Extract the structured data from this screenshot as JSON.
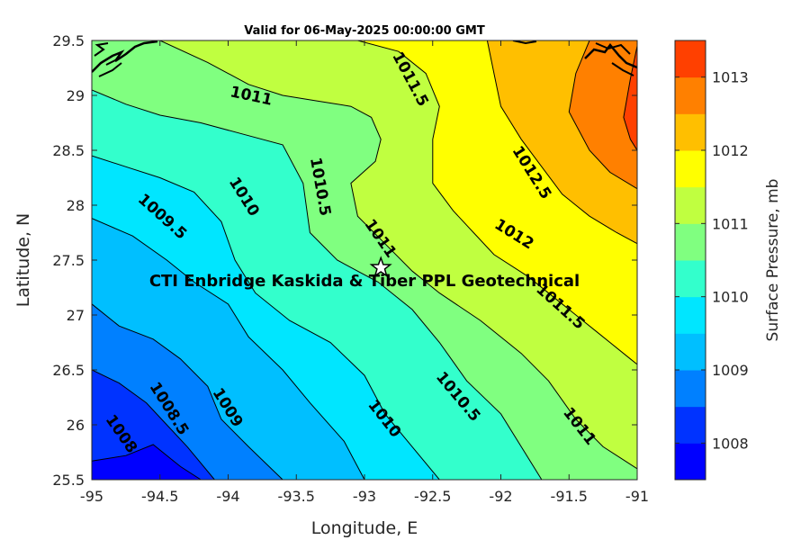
{
  "chart_data": {
    "type": "contour",
    "title": "Valid for 06-May-2025 00:00:00 GMT",
    "xlabel": "Longitude, E",
    "ylabel": "Latitude, N",
    "xlim": [
      -95,
      -91
    ],
    "ylim": [
      25.5,
      29.5
    ],
    "xticks": [
      -95,
      -94.5,
      -94,
      -93.5,
      -93,
      -92.5,
      -92,
      -91.5,
      -91
    ],
    "yticks": [
      25.5,
      26,
      26.5,
      27,
      27.5,
      28,
      28.5,
      29,
      29.5
    ],
    "colorbar": {
      "label": "Surface Pressure, mb",
      "range": [
        1007.5,
        1013.5
      ],
      "ticks": [
        1008,
        1009,
        1010,
        1011,
        1012,
        1013
      ],
      "levels": [
        1007.5,
        1008,
        1008.5,
        1009,
        1009.5,
        1010,
        1010.5,
        1011,
        1011.5,
        1012,
        1012.5,
        1013,
        1013.5
      ],
      "colors": [
        "#0000ff",
        "#0033ff",
        "#0080ff",
        "#00bfff",
        "#00e6ff",
        "#33ffcc",
        "#80ff80",
        "#c0ff40",
        "#ffff00",
        "#ffbf00",
        "#ff8000",
        "#ff4000",
        "#ff0000"
      ]
    },
    "contours": [
      {
        "level": 1008,
        "points": [
          [
            -95,
            25.67
          ],
          [
            -94.75,
            25.72
          ],
          [
            -94.55,
            25.82
          ],
          [
            -94.35,
            25.62
          ],
          [
            -94.2,
            25.5
          ]
        ]
      },
      {
        "level": 1008.5,
        "points": [
          [
            -95,
            26.5
          ],
          [
            -94.8,
            26.38
          ],
          [
            -94.6,
            26.2
          ],
          [
            -94.45,
            26.0
          ],
          [
            -94.3,
            25.8
          ],
          [
            -94.1,
            25.5
          ]
        ]
      },
      {
        "level": 1009,
        "points": [
          [
            -95,
            27.1
          ],
          [
            -94.8,
            26.9
          ],
          [
            -94.55,
            26.78
          ],
          [
            -94.35,
            26.6
          ],
          [
            -94.15,
            26.35
          ],
          [
            -94.05,
            26.05
          ],
          [
            -93.85,
            25.8
          ],
          [
            -93.6,
            25.5
          ]
        ]
      },
      {
        "level": 1009.5,
        "points": [
          [
            -95,
            27.88
          ],
          [
            -94.7,
            27.72
          ],
          [
            -94.45,
            27.5
          ],
          [
            -94.25,
            27.3
          ],
          [
            -94.0,
            27.1
          ],
          [
            -93.85,
            26.8
          ],
          [
            -93.6,
            26.5
          ],
          [
            -93.4,
            26.2
          ],
          [
            -93.15,
            25.85
          ],
          [
            -93.0,
            25.5
          ]
        ]
      },
      {
        "level": 1010,
        "points": [
          [
            -95,
            28.45
          ],
          [
            -94.75,
            28.35
          ],
          [
            -94.5,
            28.25
          ],
          [
            -94.25,
            28.12
          ],
          [
            -94.05,
            27.85
          ],
          [
            -93.95,
            27.5
          ],
          [
            -93.8,
            27.2
          ],
          [
            -93.55,
            26.95
          ],
          [
            -93.25,
            26.75
          ],
          [
            -93.0,
            26.45
          ],
          [
            -92.85,
            26.1
          ],
          [
            -92.65,
            25.8
          ],
          [
            -92.45,
            25.5
          ]
        ]
      },
      {
        "level": 1010.5,
        "points": [
          [
            -95,
            29.05
          ],
          [
            -94.75,
            28.92
          ],
          [
            -94.5,
            28.82
          ],
          [
            -94.2,
            28.75
          ],
          [
            -93.9,
            28.65
          ],
          [
            -93.6,
            28.55
          ],
          [
            -93.45,
            28.2
          ],
          [
            -93.4,
            27.75
          ],
          [
            -93.2,
            27.5
          ],
          [
            -92.9,
            27.3
          ],
          [
            -92.65,
            27.05
          ],
          [
            -92.45,
            26.75
          ],
          [
            -92.25,
            26.4
          ],
          [
            -92.0,
            26.1
          ],
          [
            -91.85,
            25.8
          ],
          [
            -91.7,
            25.5
          ]
        ]
      },
      {
        "level": 1011,
        "points": [
          [
            -94.5,
            29.5
          ],
          [
            -94.15,
            29.3
          ],
          [
            -93.85,
            29.1
          ],
          [
            -93.6,
            29.0
          ],
          [
            -93.35,
            28.95
          ],
          [
            -93.1,
            28.9
          ],
          [
            -92.95,
            28.8
          ],
          [
            -92.88,
            28.6
          ],
          [
            -92.92,
            28.4
          ],
          [
            -93.1,
            28.2
          ],
          [
            -93.05,
            27.9
          ],
          [
            -92.85,
            27.65
          ],
          [
            -92.65,
            27.4
          ],
          [
            -92.45,
            27.2
          ],
          [
            -92.15,
            26.95
          ],
          [
            -91.85,
            26.65
          ],
          [
            -91.65,
            26.4
          ],
          [
            -91.45,
            26.05
          ],
          [
            -91.25,
            25.8
          ],
          [
            -91.0,
            25.6
          ]
        ]
      },
      {
        "level": 1011.5,
        "points": [
          [
            -93.05,
            29.5
          ],
          [
            -92.75,
            29.4
          ],
          [
            -92.55,
            29.2
          ],
          [
            -92.45,
            28.9
          ],
          [
            -92.5,
            28.6
          ],
          [
            -92.5,
            28.2
          ],
          [
            -92.35,
            27.95
          ],
          [
            -92.2,
            27.75
          ],
          [
            -92.05,
            27.55
          ],
          [
            -91.8,
            27.35
          ],
          [
            -91.55,
            27.1
          ],
          [
            -91.3,
            26.85
          ],
          [
            -91.05,
            26.6
          ],
          [
            -91.0,
            26.55
          ]
        ]
      },
      {
        "level": 1012,
        "points": [
          [
            -92.1,
            29.5
          ],
          [
            -92.05,
            29.2
          ],
          [
            -92.0,
            28.9
          ],
          [
            -91.85,
            28.6
          ],
          [
            -91.7,
            28.35
          ],
          [
            -91.55,
            28.1
          ],
          [
            -91.35,
            27.9
          ],
          [
            -91.15,
            27.75
          ],
          [
            -91.0,
            27.65
          ]
        ]
      },
      {
        "level": 1012.5,
        "points": [
          [
            -91.35,
            29.5
          ],
          [
            -91.45,
            29.2
          ],
          [
            -91.5,
            28.85
          ],
          [
            -91.35,
            28.5
          ],
          [
            -91.2,
            28.3
          ],
          [
            -91.0,
            28.15
          ]
        ]
      },
      {
        "level": 1013,
        "points": [
          [
            -91.0,
            29.45
          ],
          [
            -91.05,
            29.15
          ],
          [
            -91.1,
            28.8
          ],
          [
            -91.05,
            28.6
          ],
          [
            -91.0,
            28.5
          ]
        ]
      }
    ],
    "contour_labels": [
      {
        "text": "1008",
        "x": -94.78,
        "y": 25.92,
        "angle": 55
      },
      {
        "text": "1008.5",
        "x": -94.43,
        "y": 26.15,
        "angle": 58
      },
      {
        "text": "1009",
        "x": -94.0,
        "y": 26.16,
        "angle": 58
      },
      {
        "text": "1009.5",
        "x": -94.48,
        "y": 27.9,
        "angle": 42
      },
      {
        "text": "1010",
        "x": -93.88,
        "y": 28.08,
        "angle": 58
      },
      {
        "text": "1010.5",
        "x": -93.32,
        "y": 28.17,
        "angle": 80
      },
      {
        "text": "1011",
        "x": -93.83,
        "y": 29.0,
        "angle": 12
      },
      {
        "text": "1011",
        "x": -92.88,
        "y": 27.7,
        "angle": 55
      },
      {
        "text": "1011.5",
        "x": -92.66,
        "y": 29.15,
        "angle": 62
      },
      {
        "text": "1012.5",
        "x": -91.77,
        "y": 28.3,
        "angle": 58
      },
      {
        "text": "1012",
        "x": -91.9,
        "y": 27.74,
        "angle": 32
      },
      {
        "text": "1011.5",
        "x": -91.56,
        "y": 27.08,
        "angle": 42
      },
      {
        "text": "1010",
        "x": -92.85,
        "y": 26.06,
        "angle": 52
      },
      {
        "text": "1010.5",
        "x": -92.31,
        "y": 26.26,
        "angle": 50
      },
      {
        "text": "1011",
        "x": -91.42,
        "y": 25.99,
        "angle": 52
      }
    ],
    "annotation": {
      "text": "CTI Enbridge  Kaskida & Tiber PPL Geotechnical",
      "x": -93.0,
      "y": 27.32
    },
    "site_marker": {
      "shape": "star",
      "x": -92.88,
      "y": 27.43
    },
    "grid": false
  }
}
